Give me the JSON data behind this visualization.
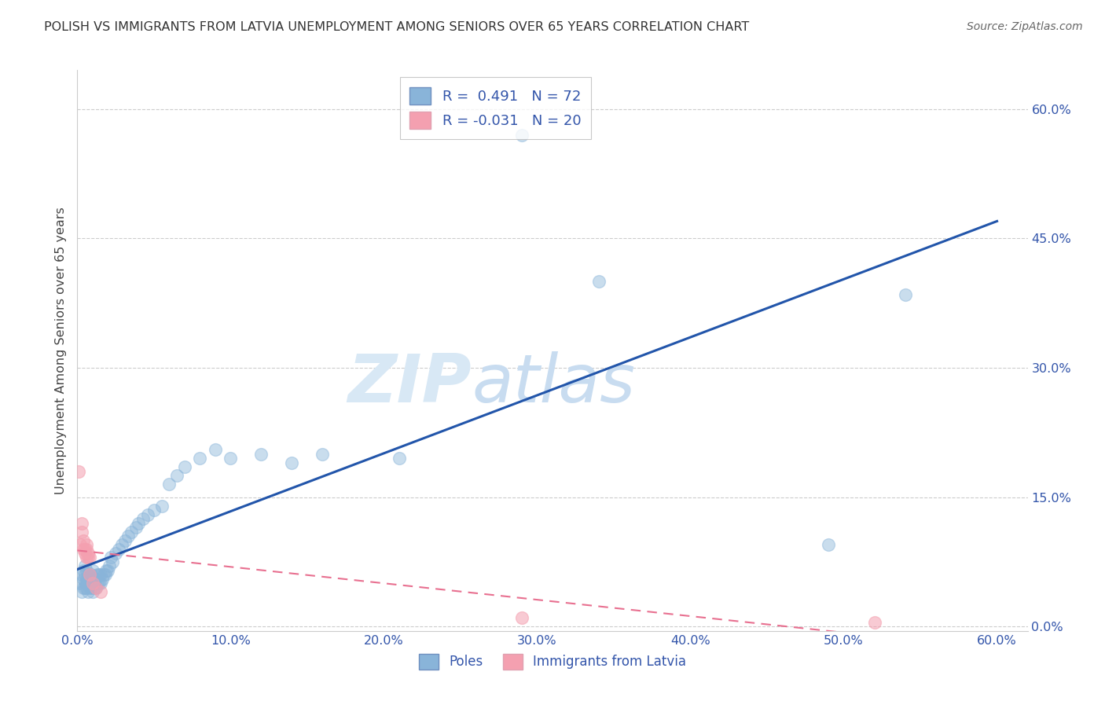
{
  "title": "POLISH VS IMMIGRANTS FROM LATVIA UNEMPLOYMENT AMONG SENIORS OVER 65 YEARS CORRELATION CHART",
  "source": "Source: ZipAtlas.com",
  "ylabel": "Unemployment Among Seniors over 65 years",
  "xlim": [
    0.0,
    0.62
  ],
  "ylim": [
    -0.005,
    0.645
  ],
  "blue_r": "0.491",
  "blue_n": "72",
  "pink_r": "-0.031",
  "pink_n": "20",
  "legend_labels": [
    "Poles",
    "Immigrants from Latvia"
  ],
  "blue_scatter_color": "#89B4D9",
  "blue_scatter_edge": "#89B4D9",
  "pink_scatter_color": "#F4A0B0",
  "pink_scatter_edge": "#F4A0B0",
  "blue_line_color": "#2255AA",
  "pink_line_color": "#E87090",
  "watermark_zip": "ZIP",
  "watermark_atlas": "atlas",
  "watermark_color": "#D8E8F5",
  "tick_color": "#3355AA",
  "grid_color": "#CCCCCC",
  "poles_x": [
    0.002,
    0.003,
    0.003,
    0.004,
    0.004,
    0.004,
    0.005,
    0.005,
    0.005,
    0.005,
    0.006,
    0.006,
    0.006,
    0.006,
    0.007,
    0.007,
    0.007,
    0.007,
    0.008,
    0.008,
    0.008,
    0.009,
    0.009,
    0.009,
    0.01,
    0.01,
    0.01,
    0.01,
    0.011,
    0.011,
    0.012,
    0.012,
    0.013,
    0.013,
    0.014,
    0.014,
    0.015,
    0.015,
    0.016,
    0.017,
    0.018,
    0.019,
    0.02,
    0.021,
    0.022,
    0.023,
    0.025,
    0.027,
    0.029,
    0.031,
    0.033,
    0.035,
    0.038,
    0.04,
    0.043,
    0.046,
    0.05,
    0.055,
    0.06,
    0.065,
    0.07,
    0.08,
    0.09,
    0.1,
    0.12,
    0.14,
    0.16,
    0.21,
    0.29,
    0.34,
    0.49,
    0.54
  ],
  "poles_y": [
    0.05,
    0.04,
    0.06,
    0.045,
    0.055,
    0.065,
    0.045,
    0.05,
    0.06,
    0.07,
    0.045,
    0.05,
    0.055,
    0.065,
    0.04,
    0.05,
    0.055,
    0.06,
    0.045,
    0.05,
    0.06,
    0.045,
    0.055,
    0.06,
    0.04,
    0.05,
    0.055,
    0.065,
    0.045,
    0.055,
    0.045,
    0.055,
    0.05,
    0.06,
    0.05,
    0.06,
    0.05,
    0.06,
    0.055,
    0.06,
    0.06,
    0.065,
    0.065,
    0.07,
    0.08,
    0.075,
    0.085,
    0.09,
    0.095,
    0.1,
    0.105,
    0.11,
    0.115,
    0.12,
    0.125,
    0.13,
    0.135,
    0.14,
    0.165,
    0.175,
    0.185,
    0.195,
    0.205,
    0.195,
    0.2,
    0.19,
    0.2,
    0.195,
    0.57,
    0.4,
    0.095,
    0.385
  ],
  "latvia_x": [
    0.001,
    0.002,
    0.003,
    0.003,
    0.004,
    0.004,
    0.005,
    0.005,
    0.006,
    0.006,
    0.006,
    0.007,
    0.007,
    0.008,
    0.008,
    0.01,
    0.012,
    0.015,
    0.29,
    0.52
  ],
  "latvia_y": [
    0.18,
    0.095,
    0.12,
    0.11,
    0.1,
    0.09,
    0.085,
    0.09,
    0.095,
    0.08,
    0.09,
    0.085,
    0.08,
    0.08,
    0.06,
    0.05,
    0.045,
    0.04,
    0.01,
    0.005
  ]
}
